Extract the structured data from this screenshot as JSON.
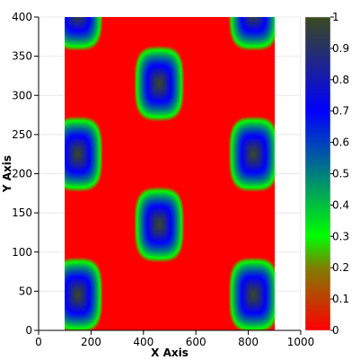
{
  "chart_data": {
    "type": "heatmap",
    "title": "",
    "xlabel": "X Axis",
    "ylabel": "Y Axis",
    "xlim": [
      0,
      1000
    ],
    "ylim": [
      0,
      400
    ],
    "x_ticks": [
      "0",
      "200",
      "400",
      "600",
      "800",
      "1000"
    ],
    "y_ticks": [
      "0",
      "50",
      "100",
      "150",
      "200",
      "250",
      "300",
      "350",
      "400"
    ],
    "data_extent": {
      "x": [
        100,
        900
      ],
      "y": [
        0,
        400
      ]
    },
    "grid": true,
    "field": "periodic bump pattern with maxima near the centers listed below",
    "peak_centers": [
      {
        "x": 150,
        "y": 45
      },
      {
        "x": 820,
        "y": 45
      },
      {
        "x": 460,
        "y": 135
      },
      {
        "x": 150,
        "y": 225
      },
      {
        "x": 820,
        "y": 225
      },
      {
        "x": 460,
        "y": 315
      },
      {
        "x": 150,
        "y": 405
      },
      {
        "x": 820,
        "y": 405
      }
    ],
    "value_range": [
      0,
      1
    ],
    "colorbar": {
      "ticks": [
        "0",
        "0.1",
        "0.2",
        "0.3",
        "0.4",
        "0.5",
        "0.6",
        "0.7",
        "0.8",
        "0.9",
        "1"
      ],
      "colormap": [
        {
          "v": 0.0,
          "color": "#ff0000"
        },
        {
          "v": 0.2,
          "color": "#7f7f00"
        },
        {
          "v": 0.3,
          "color": "#00ff00"
        },
        {
          "v": 0.5,
          "color": "#007f7f"
        },
        {
          "v": 0.7,
          "color": "#0000ff"
        },
        {
          "v": 1.0,
          "color": "#3a4a1e"
        }
      ]
    }
  }
}
